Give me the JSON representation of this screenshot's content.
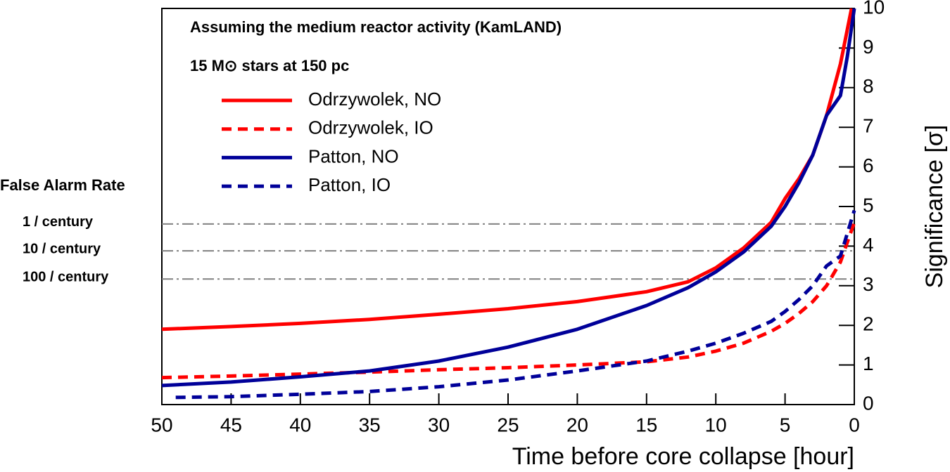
{
  "chart_data": {
    "type": "line",
    "annotations": [
      "Assuming the medium reactor activity (KamLAND)",
      "15 M⊙ stars at 150 pc"
    ],
    "xlabel": "Time before core collapse [hour]",
    "ylabel": "Significance [σ]",
    "xlim": [
      50,
      0
    ],
    "xticks": [
      50,
      45,
      40,
      35,
      30,
      25,
      20,
      15,
      10,
      5,
      0
    ],
    "ylim": [
      0,
      10
    ],
    "yticks": [
      0,
      1,
      2,
      3,
      4,
      5,
      6,
      7,
      8,
      9,
      10
    ],
    "legend": "upper-left",
    "far_title": "False Alarm Rate",
    "far_color": "#808080",
    "far_lines": [
      {
        "label": "1 / century",
        "value": 4.56
      },
      {
        "label": "10 / century",
        "value": 3.88
      },
      {
        "label": "100 / century",
        "value": 3.17
      }
    ],
    "series": [
      {
        "name": "Odrzywolek, NO",
        "color": "#ff0000",
        "dashed": false,
        "x": [
          50,
          45,
          40,
          35,
          30,
          25,
          20,
          15,
          12,
          10,
          8,
          6,
          5,
          4,
          3,
          2,
          1,
          0.2
        ],
        "values": [
          1.9,
          1.97,
          2.05,
          2.15,
          2.28,
          2.42,
          2.6,
          2.85,
          3.1,
          3.45,
          3.95,
          4.6,
          5.2,
          5.7,
          6.3,
          7.3,
          8.6,
          10
        ]
      },
      {
        "name": "Odrzywolek, IO",
        "color": "#ff0000",
        "dashed": true,
        "x": [
          50,
          45,
          40,
          35,
          30,
          25,
          20,
          15,
          12,
          10,
          8,
          6,
          5,
          4,
          3,
          2,
          1,
          0
        ],
        "values": [
          0.68,
          0.72,
          0.77,
          0.82,
          0.88,
          0.93,
          1.0,
          1.08,
          1.2,
          1.35,
          1.55,
          1.85,
          2.05,
          2.3,
          2.6,
          3.0,
          3.6,
          4.6
        ]
      },
      {
        "name": "Patton, NO",
        "color": "#000099",
        "dashed": false,
        "x": [
          50,
          45,
          40,
          35,
          30,
          25,
          20,
          15,
          12,
          10,
          8,
          6,
          5,
          4,
          3,
          2,
          1,
          0.5,
          0
        ],
        "values": [
          0.48,
          0.57,
          0.7,
          0.85,
          1.1,
          1.45,
          1.9,
          2.5,
          2.95,
          3.35,
          3.85,
          4.5,
          5.0,
          5.6,
          6.3,
          7.3,
          7.8,
          8.8,
          10
        ]
      },
      {
        "name": "Patton, IO",
        "color": "#000099",
        "dashed": true,
        "x": [
          49,
          45,
          40,
          35,
          30,
          25,
          20,
          15,
          12,
          10,
          8,
          6,
          5,
          4,
          3,
          2,
          1,
          0
        ],
        "values": [
          0.18,
          0.2,
          0.26,
          0.33,
          0.45,
          0.62,
          0.85,
          1.1,
          1.35,
          1.55,
          1.8,
          2.1,
          2.35,
          2.65,
          3.0,
          3.5,
          3.75,
          4.9
        ]
      }
    ]
  }
}
